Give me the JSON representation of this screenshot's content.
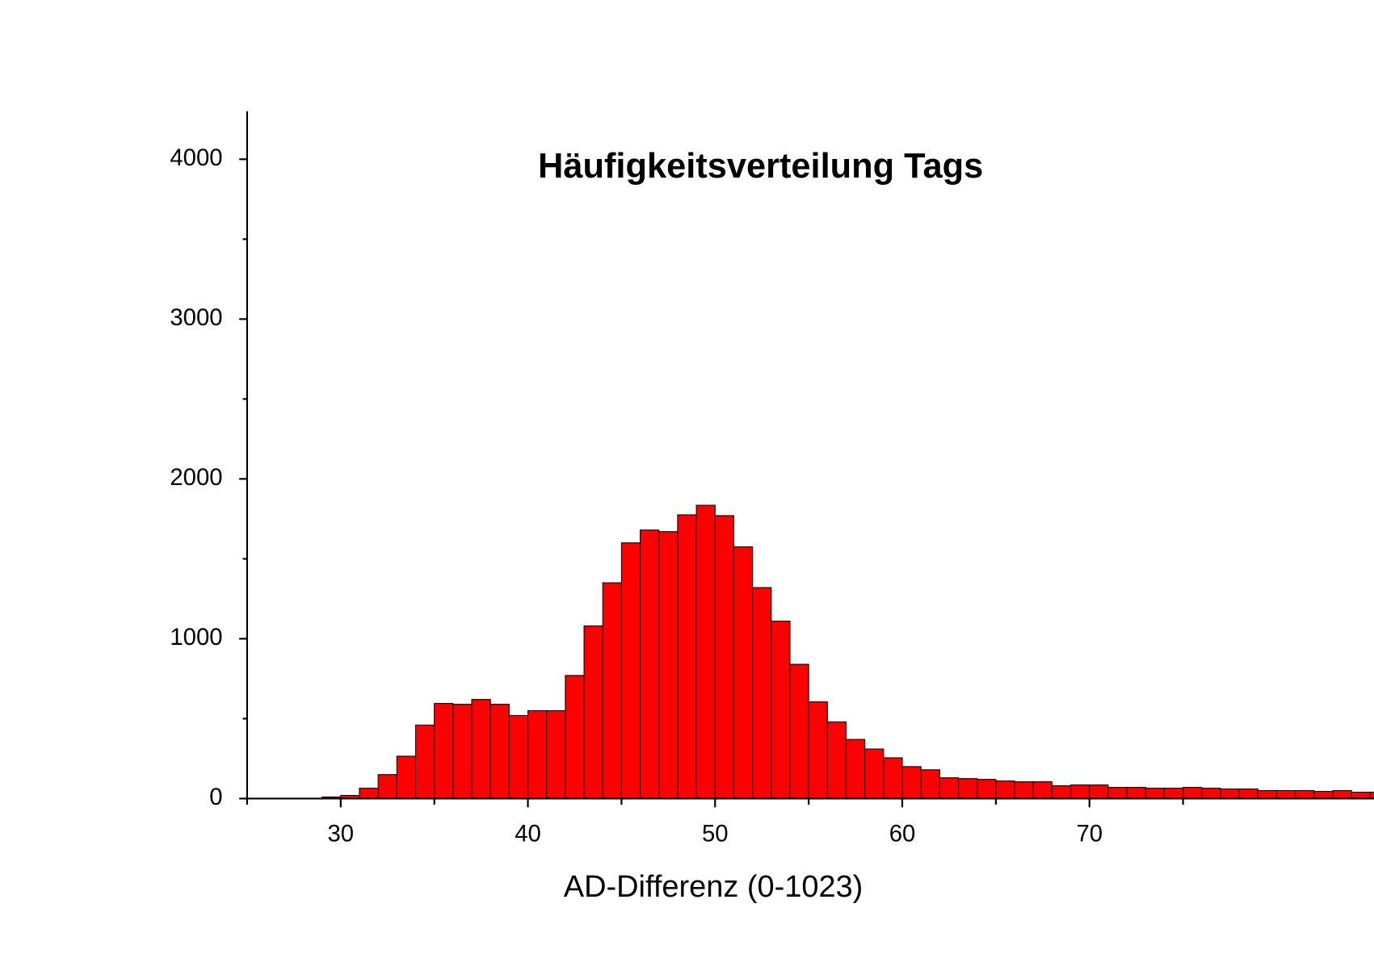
{
  "chart_data": {
    "type": "histogram",
    "title": "Häufigkeitsverteilung Tags",
    "x_label": "AD-Differenz (0-1023)",
    "color": "#ff0000",
    "edgecolor": "#000000",
    "bins": [
      29,
      30,
      31,
      32,
      33,
      34,
      35,
      36,
      37,
      38,
      39,
      40,
      41,
      42,
      43,
      44,
      45,
      46,
      47,
      48,
      49,
      50,
      51,
      52,
      53,
      54,
      55,
      56,
      57,
      58,
      59,
      60,
      61,
      62,
      63,
      64,
      65,
      66,
      67,
      68,
      69,
      70,
      71,
      72,
      73,
      74,
      75,
      76,
      77,
      78,
      79,
      80,
      81,
      82,
      83,
      84,
      85,
      86
    ],
    "values": [
      10,
      20,
      65,
      150,
      265,
      460,
      595,
      590,
      620,
      590,
      520,
      550,
      550,
      770,
      1080,
      1350,
      1600,
      1680,
      1670,
      1775,
      1835,
      1770,
      1575,
      1320,
      1110,
      840,
      605,
      480,
      370,
      310,
      255,
      200,
      180,
      130,
      125,
      120,
      110,
      105,
      105,
      80,
      85,
      85,
      70,
      70,
      65,
      65,
      70,
      65,
      60,
      60,
      50,
      50,
      50,
      45,
      50,
      40,
      40
    ],
    "xlim": [
      25,
      85.2
    ],
    "ylim": [
      0,
      4300
    ],
    "xticks": [
      30,
      40,
      50,
      60,
      70
    ],
    "xminorticks": [
      25,
      35,
      45,
      55,
      65,
      75
    ],
    "yticks": [
      0,
      1000,
      2000,
      3000,
      4000
    ],
    "yminorticks": [
      500,
      1500,
      2500,
      3500
    ],
    "grid": false
  }
}
